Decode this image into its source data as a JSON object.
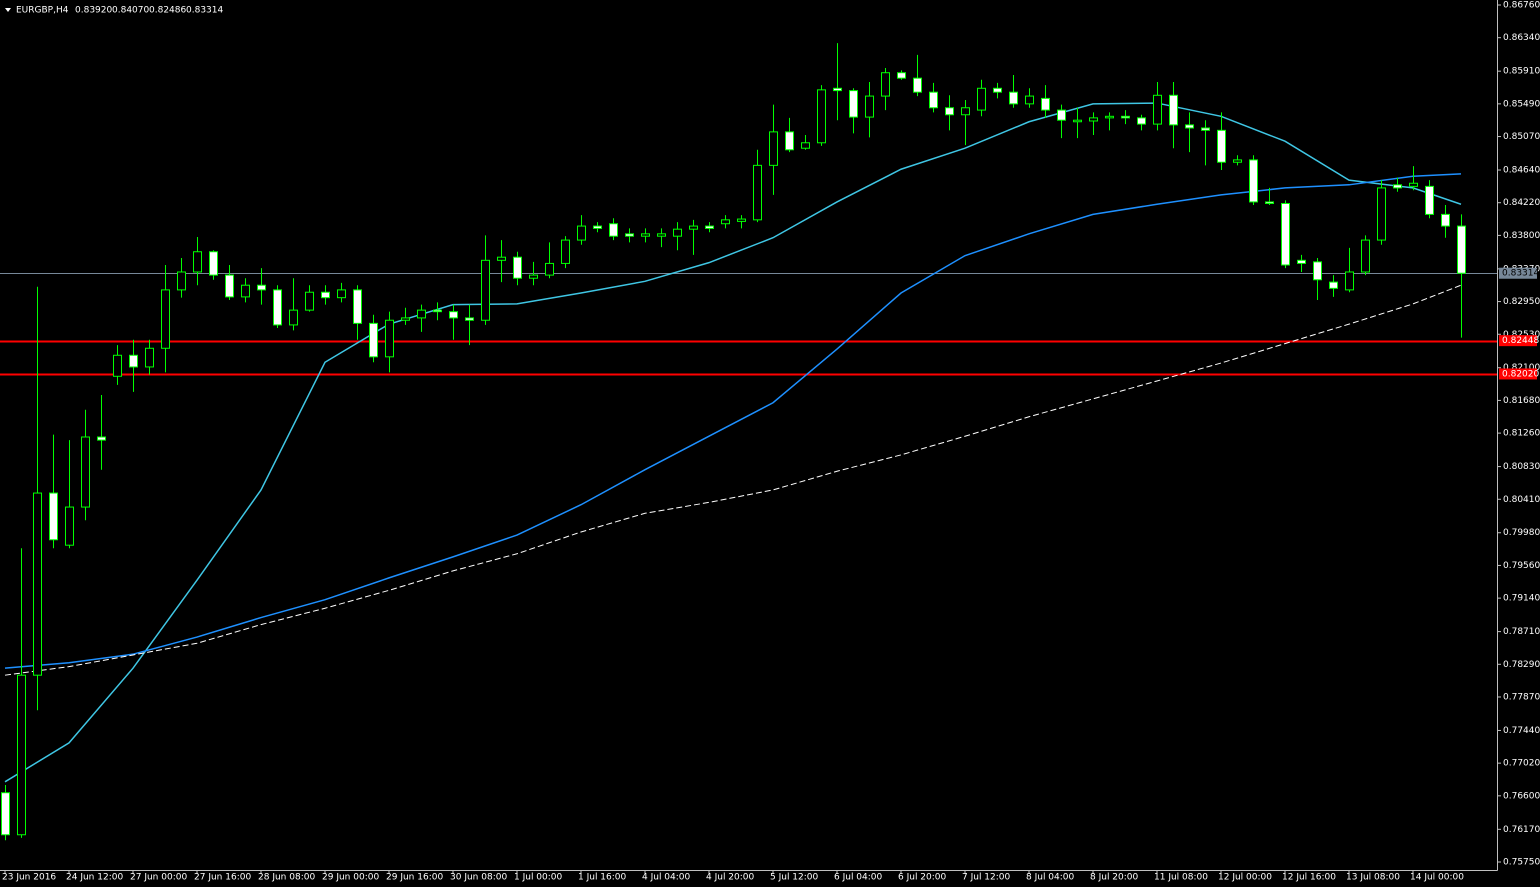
{
  "chart_data": {
    "type": "candlestick",
    "header": {
      "symbol": "EURGBP,H4",
      "prices": [
        "0.83920",
        "0.84070",
        "0.82486",
        "0.83314"
      ]
    },
    "categories": [
      "23 Jun 2016",
      null,
      null,
      null,
      "24 Jun 12:00",
      null,
      null,
      null,
      "27 Jun 00:00",
      null,
      null,
      null,
      "27 Jun 16:00",
      null,
      null,
      null,
      "28 Jun 08:00",
      null,
      null,
      null,
      "29 Jun 00:00",
      null,
      null,
      null,
      "29 Jun 16:00",
      null,
      null,
      null,
      "30 Jun 08:00",
      null,
      null,
      null,
      "1 Jul 00:00",
      null,
      null,
      null,
      "1 Jul 16:00",
      null,
      null,
      null,
      "4 Jul 04:00",
      null,
      null,
      null,
      "4 Jul 20:00",
      null,
      null,
      null,
      "5 Jul 12:00",
      null,
      null,
      null,
      "6 Jul 04:00",
      null,
      null,
      null,
      "6 Jul 20:00",
      null,
      null,
      null,
      "7 Jul 12:00",
      null,
      null,
      null,
      "8 Jul 04:00",
      null,
      null,
      null,
      "8 Jul 20:00",
      null,
      null,
      null,
      "11 Jul 08:00",
      null,
      null,
      null,
      "12 Jul 00:00",
      null,
      null,
      null,
      "12 Jul 16:00",
      null,
      null,
      null,
      "13 Jul 08:00",
      null,
      null,
      null,
      "14 Jul 00:00",
      null,
      null,
      null
    ],
    "ohlc": [
      [
        0.7664,
        0.7674,
        0.7603,
        0.761
      ],
      [
        0.761,
        0.7978,
        0.7606,
        0.7815
      ],
      [
        0.7815,
        0.8314,
        0.777,
        0.8049
      ],
      [
        0.8049,
        0.8124,
        0.7978,
        0.7989
      ],
      [
        0.7982,
        0.8117,
        0.7978,
        0.8031
      ],
      [
        0.8031,
        0.8156,
        0.8014,
        0.8121
      ],
      [
        0.8121,
        0.8175,
        0.8079,
        0.8117
      ],
      [
        0.8199,
        0.8239,
        0.8188,
        0.8226
      ],
      [
        0.8226,
        0.8246,
        0.8179,
        0.8211
      ],
      [
        0.8211,
        0.8246,
        0.8201,
        0.8235
      ],
      [
        0.8235,
        0.8342,
        0.8204,
        0.831
      ],
      [
        0.831,
        0.8351,
        0.83,
        0.8333
      ],
      [
        0.8333,
        0.8378,
        0.8316,
        0.8359
      ],
      [
        0.8359,
        0.8361,
        0.8323,
        0.8329
      ],
      [
        0.8329,
        0.8342,
        0.8297,
        0.8301
      ],
      [
        0.8301,
        0.8325,
        0.8294,
        0.8316
      ],
      [
        0.8316,
        0.8338,
        0.8291,
        0.831
      ],
      [
        0.831,
        0.8316,
        0.8261,
        0.8265
      ],
      [
        0.8265,
        0.8325,
        0.8258,
        0.8284
      ],
      [
        0.8284,
        0.8316,
        0.8282,
        0.8307
      ],
      [
        0.8307,
        0.8316,
        0.8291,
        0.83
      ],
      [
        0.83,
        0.8319,
        0.8294,
        0.831
      ],
      [
        0.831,
        0.8316,
        0.8246,
        0.8267
      ],
      [
        0.8267,
        0.8278,
        0.8217,
        0.8224
      ],
      [
        0.8224,
        0.8282,
        0.8204,
        0.8271
      ],
      [
        0.8271,
        0.8287,
        0.8265,
        0.8274
      ],
      [
        0.8274,
        0.8291,
        0.8256,
        0.8284
      ],
      [
        0.8284,
        0.8294,
        0.8271,
        0.8282
      ],
      [
        0.8282,
        0.8291,
        0.8246,
        0.8274
      ],
      [
        0.8274,
        0.8291,
        0.8239,
        0.8271
      ],
      [
        0.8271,
        0.838,
        0.8265,
        0.8348
      ],
      [
        0.8348,
        0.8374,
        0.832,
        0.8352
      ],
      [
        0.8352,
        0.8359,
        0.8316,
        0.8325
      ],
      [
        0.8325,
        0.8346,
        0.8316,
        0.8329
      ],
      [
        0.8329,
        0.8371,
        0.8325,
        0.8344
      ],
      [
        0.8344,
        0.8379,
        0.8338,
        0.8374
      ],
      [
        0.8374,
        0.8406,
        0.8368,
        0.8392
      ],
      [
        0.8392,
        0.8397,
        0.8384,
        0.8389
      ],
      [
        0.8395,
        0.8402,
        0.8374,
        0.8379
      ],
      [
        0.8382,
        0.8389,
        0.8371,
        0.8379
      ],
      [
        0.8379,
        0.8389,
        0.8371,
        0.8382
      ],
      [
        0.8379,
        0.8389,
        0.8365,
        0.8382
      ],
      [
        0.8379,
        0.8397,
        0.8361,
        0.8388
      ],
      [
        0.8388,
        0.84,
        0.8355,
        0.8392
      ],
      [
        0.8392,
        0.8397,
        0.8384,
        0.8389
      ],
      [
        0.8395,
        0.8406,
        0.8389,
        0.84
      ],
      [
        0.8398,
        0.8406,
        0.8389,
        0.8401
      ],
      [
        0.84,
        0.849,
        0.8397,
        0.847
      ],
      [
        0.847,
        0.8548,
        0.8432,
        0.8513
      ],
      [
        0.8513,
        0.8531,
        0.8487,
        0.849
      ],
      [
        0.8492,
        0.8509,
        0.849,
        0.8499
      ],
      [
        0.8499,
        0.8573,
        0.8495,
        0.8567
      ],
      [
        0.8569,
        0.8627,
        0.8528,
        0.8566
      ],
      [
        0.8566,
        0.8569,
        0.8511,
        0.8532
      ],
      [
        0.8532,
        0.8577,
        0.8506,
        0.8559
      ],
      [
        0.8559,
        0.8595,
        0.8541,
        0.8589
      ],
      [
        0.8589,
        0.8592,
        0.858,
        0.8582
      ],
      [
        0.8582,
        0.8612,
        0.8559,
        0.8564
      ],
      [
        0.8564,
        0.8576,
        0.8538,
        0.8544
      ],
      [
        0.8544,
        0.856,
        0.8515,
        0.8535
      ],
      [
        0.8535,
        0.8554,
        0.8496,
        0.8544
      ],
      [
        0.8541,
        0.858,
        0.8533,
        0.8569
      ],
      [
        0.8569,
        0.8576,
        0.8556,
        0.8564
      ],
      [
        0.8564,
        0.8586,
        0.8544,
        0.8549
      ],
      [
        0.8549,
        0.8569,
        0.8544,
        0.8559
      ],
      [
        0.8556,
        0.8573,
        0.8531,
        0.8541
      ],
      [
        0.8541,
        0.8548,
        0.8505,
        0.8528
      ],
      [
        0.8526,
        0.8544,
        0.8505,
        0.8528
      ],
      [
        0.8527,
        0.8538,
        0.8509,
        0.8531
      ],
      [
        0.8531,
        0.8538,
        0.8515,
        0.8533
      ],
      [
        0.8533,
        0.8541,
        0.8523,
        0.8531
      ],
      [
        0.8531,
        0.8535,
        0.8515,
        0.8523
      ],
      [
        0.8523,
        0.8577,
        0.8515,
        0.856
      ],
      [
        0.856,
        0.8577,
        0.8492,
        0.8522
      ],
      [
        0.8522,
        0.8538,
        0.8487,
        0.8518
      ],
      [
        0.8518,
        0.8528,
        0.847,
        0.8515
      ],
      [
        0.8515,
        0.8538,
        0.8464,
        0.8474
      ],
      [
        0.8474,
        0.8483,
        0.847,
        0.8477
      ],
      [
        0.8477,
        0.8483,
        0.8419,
        0.8423
      ],
      [
        0.8423,
        0.8441,
        0.8419,
        0.8421
      ],
      [
        0.8421,
        0.8425,
        0.8338,
        0.8342
      ],
      [
        0.8348,
        0.8355,
        0.8333,
        0.8344
      ],
      [
        0.8346,
        0.8351,
        0.8297,
        0.8323
      ],
      [
        0.832,
        0.8329,
        0.8301,
        0.8312
      ],
      [
        0.831,
        0.8364,
        0.8307,
        0.8333
      ],
      [
        0.8333,
        0.838,
        0.8329,
        0.8374
      ],
      [
        0.8374,
        0.8451,
        0.8368,
        0.8441
      ],
      [
        0.8445,
        0.8454,
        0.8436,
        0.8441
      ],
      [
        0.8443,
        0.8469,
        0.8438,
        0.8447
      ],
      [
        0.8443,
        0.8451,
        0.8402,
        0.8407
      ],
      [
        0.8407,
        0.8419,
        0.8377,
        0.8392
      ],
      [
        0.8392,
        0.8407,
        0.82486,
        0.83314
      ]
    ],
    "wick_color": "#00ff00",
    "bull_color": "#000000",
    "bear_color": "#ffffff",
    "lines": [
      {
        "color": "#3fc6e4",
        "dash": false,
        "x": [
          0,
          4,
          8,
          12,
          16,
          20,
          24,
          28,
          32,
          36,
          40,
          44,
          48,
          52,
          56,
          60,
          64,
          68,
          72,
          76,
          80,
          84,
          88,
          91
        ],
        "values": [
          0.7678,
          0.7728,
          0.7824,
          0.7937,
          0.8053,
          0.8217,
          0.8266,
          0.8291,
          0.8292,
          0.8306,
          0.8321,
          0.8345,
          0.8377,
          0.8423,
          0.8465,
          0.8492,
          0.8526,
          0.8549,
          0.855,
          0.8533,
          0.8501,
          0.8451,
          0.8441,
          0.842
        ]
      },
      {
        "color": "#1e90ff",
        "dash": false,
        "x": [
          0,
          4,
          8,
          12,
          16,
          20,
          24,
          28,
          32,
          36,
          40,
          44,
          48,
          52,
          56,
          60,
          64,
          68,
          72,
          76,
          80,
          84,
          88,
          91
        ],
        "values": [
          0.7824,
          0.7831,
          0.7842,
          0.7864,
          0.7889,
          0.7912,
          0.794,
          0.7967,
          0.7995,
          0.8034,
          0.8079,
          0.8122,
          0.8165,
          0.8234,
          0.8306,
          0.8354,
          0.8382,
          0.8407,
          0.842,
          0.8432,
          0.8441,
          0.8445,
          0.8456,
          0.8459
        ]
      },
      {
        "color": "#ffffff",
        "dash": true,
        "x": [
          0,
          4,
          8,
          12,
          16,
          20,
          24,
          28,
          32,
          36,
          40,
          44,
          48,
          52,
          56,
          60,
          64,
          68,
          72,
          76,
          80,
          84,
          88,
          91
        ],
        "values": [
          0.7815,
          0.7826,
          0.7841,
          0.7856,
          0.788,
          0.7901,
          0.7924,
          0.7949,
          0.7971,
          0.7999,
          0.8023,
          0.8037,
          0.8053,
          0.8077,
          0.8098,
          0.8122,
          0.8147,
          0.817,
          0.8193,
          0.8216,
          0.8241,
          0.8266,
          0.8292,
          0.8316
        ]
      }
    ],
    "hlines": [
      {
        "value": 0.83314,
        "label": "0.83314",
        "color": "#778899"
      },
      {
        "value": 0.82448,
        "label": "0.82448",
        "color": "#ff0000"
      },
      {
        "value": 0.8202,
        "label": "0.82020",
        "color": "#ff0000"
      }
    ],
    "ylim": [
      0.7575,
      0.8676
    ],
    "yticks": [
      {
        "value": 0.8676,
        "label": "0.86760"
      },
      {
        "value": 0.8634,
        "label": "0.86340"
      },
      {
        "value": 0.8591,
        "label": "0.85910"
      },
      {
        "value": 0.8549,
        "label": "0.85490"
      },
      {
        "value": 0.8507,
        "label": "0.85070"
      },
      {
        "value": 0.8464,
        "label": "0.84640"
      },
      {
        "value": 0.8422,
        "label": "0.84220"
      },
      {
        "value": 0.838,
        "label": "0.83800"
      },
      {
        "value": 0.8337,
        "label": "0.83370"
      },
      {
        "value": 0.8295,
        "label": "0.82950"
      },
      {
        "value": 0.8253,
        "label": "0.82530"
      },
      {
        "value": 0.821,
        "label": "0.82100"
      },
      {
        "value": 0.8168,
        "label": "0.81680"
      },
      {
        "value": 0.8126,
        "label": "0.81260"
      },
      {
        "value": 0.8083,
        "label": "0.80830"
      },
      {
        "value": 0.8041,
        "label": "0.80410"
      },
      {
        "value": 0.7998,
        "label": "0.79980"
      },
      {
        "value": 0.7956,
        "label": "0.79560"
      },
      {
        "value": 0.7914,
        "label": "0.79140"
      },
      {
        "value": 0.7871,
        "label": "0.78710"
      },
      {
        "value": 0.7829,
        "label": "0.78290"
      },
      {
        "value": 0.7787,
        "label": "0.77870"
      },
      {
        "value": 0.7744,
        "label": "0.77440"
      },
      {
        "value": 0.7702,
        "label": "0.77020"
      },
      {
        "value": 0.766,
        "label": "0.76600"
      },
      {
        "value": 0.7617,
        "label": "0.76170"
      },
      {
        "value": 0.7575,
        "label": "0.75750"
      }
    ]
  }
}
